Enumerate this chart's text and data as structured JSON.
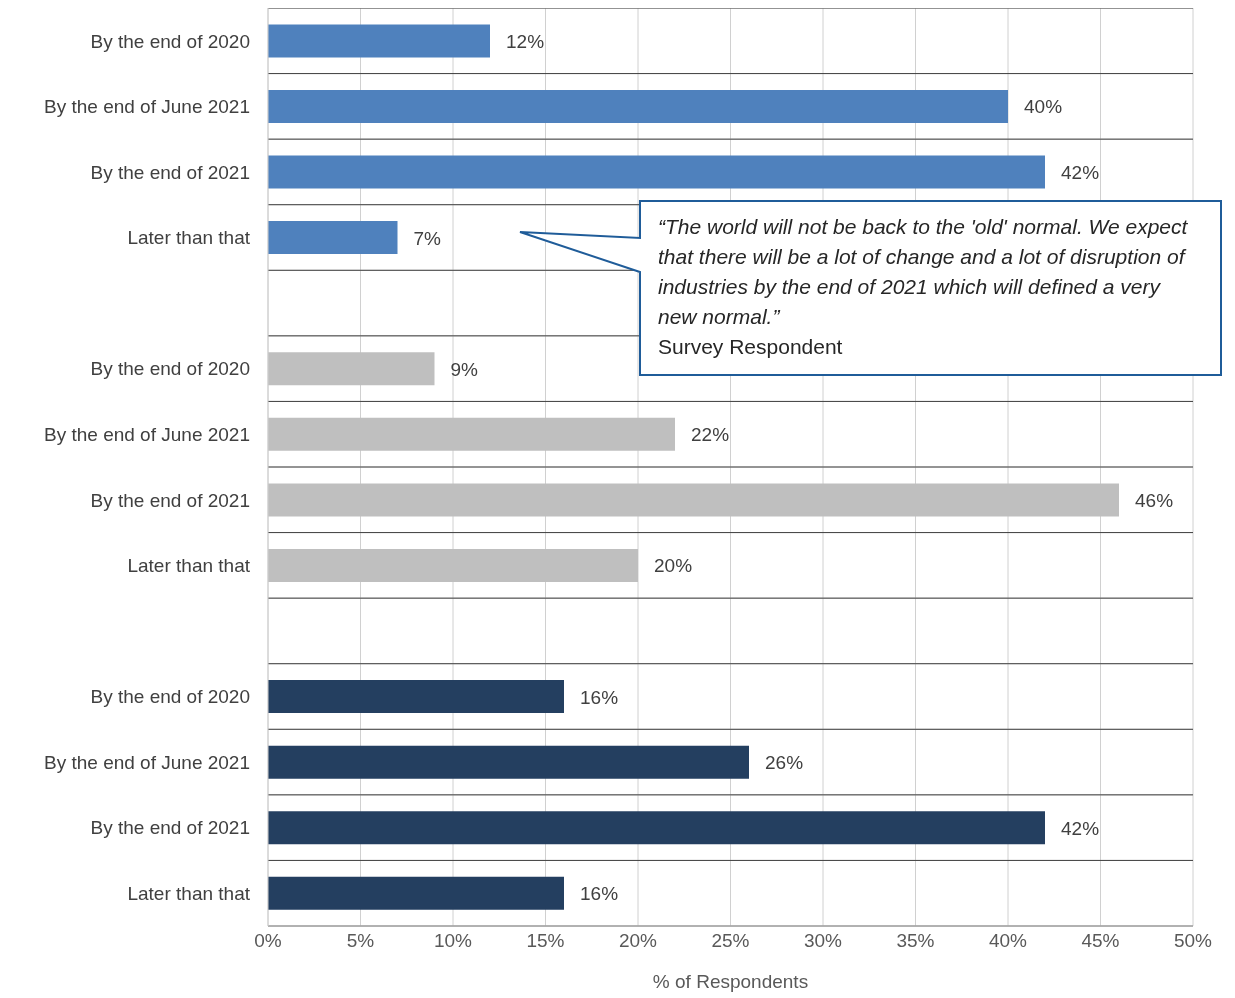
{
  "chart_data": {
    "type": "bar",
    "orientation": "horizontal",
    "xlabel": "% of Respondents",
    "categories": [
      "By the end of 2020",
      "By the end of June 2021",
      "By the end of 2021",
      "Later than that",
      null,
      "By the end of 2020",
      "By the end of June 2021",
      "By the end of 2021",
      "Later than that",
      null,
      "By the end of 2020",
      "By the end of June 2021",
      "By the end of 2021",
      "Later than that"
    ],
    "values": [
      12,
      40,
      42,
      7,
      null,
      9,
      22,
      46,
      20,
      null,
      16,
      26,
      42,
      16
    ],
    "colors": [
      "#4f81bd",
      "#4f81bd",
      "#4f81bd",
      "#4f81bd",
      null,
      "#bfbfbf",
      "#bfbfbf",
      "#bfbfbf",
      "#bfbfbf",
      null,
      "#243f60",
      "#243f60",
      "#243f60",
      "#243f60"
    ],
    "value_labels": [
      "12%",
      "40%",
      "42%",
      "7%",
      null,
      "9%",
      "22%",
      "46%",
      "20%",
      null,
      "16%",
      "26%",
      "42%",
      "16%"
    ],
    "xlim": [
      0,
      50
    ],
    "xticks": [
      {
        "value": 0,
        "label": "0%"
      },
      {
        "value": 5,
        "label": "5%"
      },
      {
        "value": 10,
        "label": "10%"
      },
      {
        "value": 15,
        "label": "15%"
      },
      {
        "value": 20,
        "label": "20%"
      },
      {
        "value": 25,
        "label": "25%"
      },
      {
        "value": 30,
        "label": "30%"
      },
      {
        "value": 35,
        "label": "35%"
      },
      {
        "value": 40,
        "label": "40%"
      },
      {
        "value": 45,
        "label": "45%"
      },
      {
        "value": 50,
        "label": "50%"
      }
    ],
    "grid": true,
    "annotations": [
      "“The world will not be back to the 'old' normal. We expect that there will be a lot of change and a lot of disruption of industries by the end of 2021 which will defined a very new normal.”",
      "Survey Respondent"
    ]
  }
}
